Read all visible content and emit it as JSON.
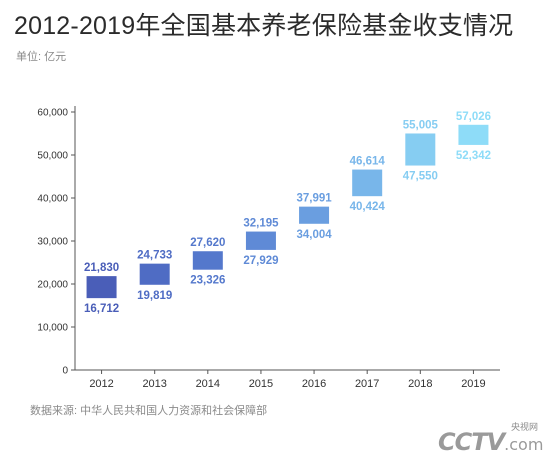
{
  "title": "2012-2019年全国基本养老保险基金收支情况",
  "unit": "单位: 亿元",
  "source": "数据来源: 中华人民共和国人力资源和社会保障部",
  "logo": {
    "small": "央视网",
    "main": "CCTV",
    "suffix": ".com"
  },
  "chart_data": {
    "type": "bar",
    "categories": [
      "2012",
      "2013",
      "2014",
      "2015",
      "2016",
      "2017",
      "2018",
      "2019"
    ],
    "series": [
      {
        "values": [
          21830,
          24733,
          27620,
          32195,
          37991,
          46614,
          55005,
          57026
        ]
      },
      {
        "values": [
          16712,
          19819,
          23326,
          27929,
          34004,
          40424,
          47550,
          52342
        ]
      }
    ],
    "top_labels": [
      "21,830",
      "24,733",
      "27,620",
      "32,195",
      "37,991",
      "46,614",
      "55,005",
      "57,026"
    ],
    "bottom_labels": [
      "16,712",
      "19,819",
      "23,326",
      "27,929",
      "34,004",
      "40,424",
      "47,550",
      "52,342"
    ],
    "y_ticks": [
      0,
      10000,
      20000,
      30000,
      40000,
      50000,
      60000
    ],
    "y_tick_labels": [
      "0",
      "10,000",
      "20,000",
      "30,000",
      "40,000",
      "50,000",
      "60,000"
    ],
    "ylim": [
      0,
      60000
    ],
    "grid": false,
    "colors": [
      "#4a5eb8",
      "#4f6cc4",
      "#5478cc",
      "#5f8ad6",
      "#6a9ee0",
      "#78b6ea",
      "#86cdf2",
      "#8edcf8"
    ]
  }
}
